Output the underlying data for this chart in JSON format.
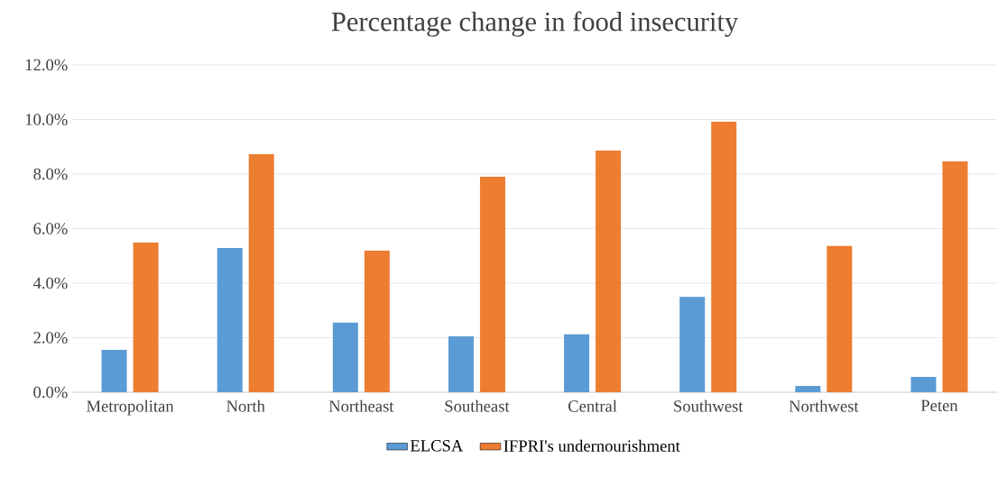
{
  "chart_data": {
    "type": "bar",
    "title": "Percentage change in food insecurity",
    "categories": [
      "Metropolitan",
      "North",
      "Northeast",
      "Southeast",
      "Central",
      "Southwest",
      "Northwest",
      "Peten"
    ],
    "series": [
      {
        "name": "ELCSA",
        "color": "#5b9bd5",
        "values": [
          1.55,
          5.29,
          2.55,
          2.05,
          2.12,
          3.5,
          0.23,
          0.56
        ]
      },
      {
        "name": "IFPRI's undernourishment",
        "color": "#ed7d31",
        "values": [
          5.49,
          8.73,
          5.19,
          7.9,
          8.86,
          9.92,
          5.36,
          8.46
        ]
      }
    ],
    "ylim": [
      0,
      12
    ],
    "yticks": [
      {
        "value": 0,
        "label": "0.0%"
      },
      {
        "value": 2,
        "label": "2.0%"
      },
      {
        "value": 4,
        "label": "4.0%"
      },
      {
        "value": 6,
        "label": "6.0%"
      },
      {
        "value": 8,
        "label": "8.0%"
      },
      {
        "value": 10,
        "label": "10.0%"
      },
      {
        "value": 12,
        "label": "12.0%"
      }
    ],
    "grid": "y",
    "legend": "bottom"
  }
}
